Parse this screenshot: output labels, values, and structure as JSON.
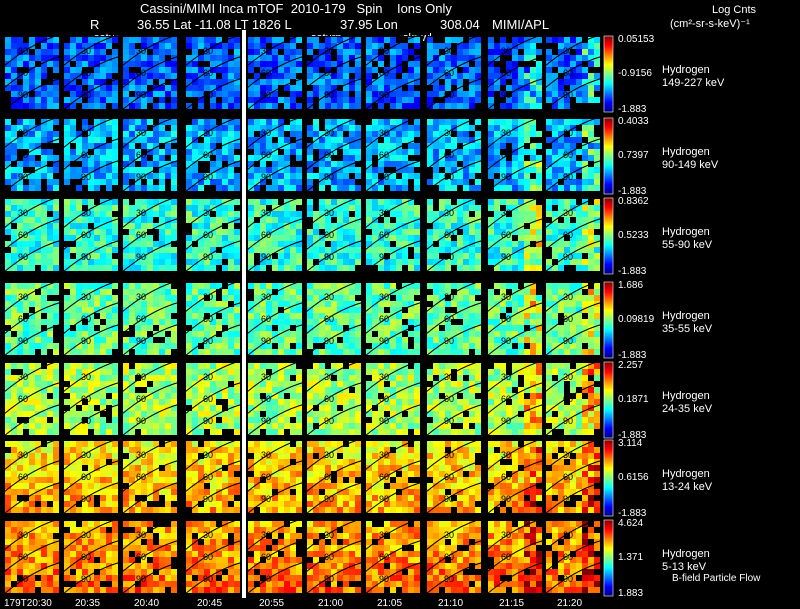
{
  "header": {
    "title": "Cassini/MIMI Inca mTOF  2010-179   Spin    Ions Only",
    "r_label": "R",
    "lat_lt": "36.55 Lat -11.08 LT 1826 L",
    "lon": "37.95 Lon",
    "value": "308.04",
    "source": "MIMI/APL"
  },
  "units": {
    "title": "Log Cnts",
    "unit": "(cm²-sr-s-keV)⁻¹"
  },
  "panel_labels": {
    "satur": "satur",
    "saturn": "saturn",
    "skr_wl": "skr-wl"
  },
  "bands": [
    {
      "species": "Hydrogen",
      "energy": "149-227 keV",
      "max": "0.05153",
      "mid": "-0.9156",
      "min": "-1.883"
    },
    {
      "species": "Hydrogen",
      "energy": "90-149 keV",
      "max": "0.4033",
      "mid": "0.7397",
      "min": "-1.883"
    },
    {
      "species": "Hydrogen",
      "energy": "55-90 keV",
      "max": "0.8362",
      "mid": "0.5233",
      "min": "-1.883"
    },
    {
      "species": "Hydrogen",
      "energy": "35-55 keV",
      "max": "1.686",
      "mid": "0.09819",
      "min": "-1.883"
    },
    {
      "species": "Hydrogen",
      "energy": "24-35 keV",
      "max": "2.257",
      "mid": "0.1871",
      "min": "-1.883"
    },
    {
      "species": "Hydrogen",
      "energy": "13-24 keV",
      "max": "3.114",
      "mid": "0.6156",
      "min": "-1.883"
    },
    {
      "species": "Hydrogen",
      "energy": "5-13 keV",
      "max": "4.624",
      "mid": "1.371",
      "min": "1.883"
    }
  ],
  "time_ticks": [
    "179T20:30",
    "20:35",
    "20:40",
    "20:45",
    "20:55",
    "21:00",
    "21:05",
    "21:10",
    "21:15",
    "21:20"
  ],
  "contour_labels": [
    "30",
    "60",
    "90",
    "120"
  ],
  "flow_label": "B-field Particle Flow",
  "colors": {
    "background": "#000000",
    "colorbar_top": "#ff0000",
    "colorbar_bottom": "#0000ff",
    "divider": "#ffffff"
  }
}
